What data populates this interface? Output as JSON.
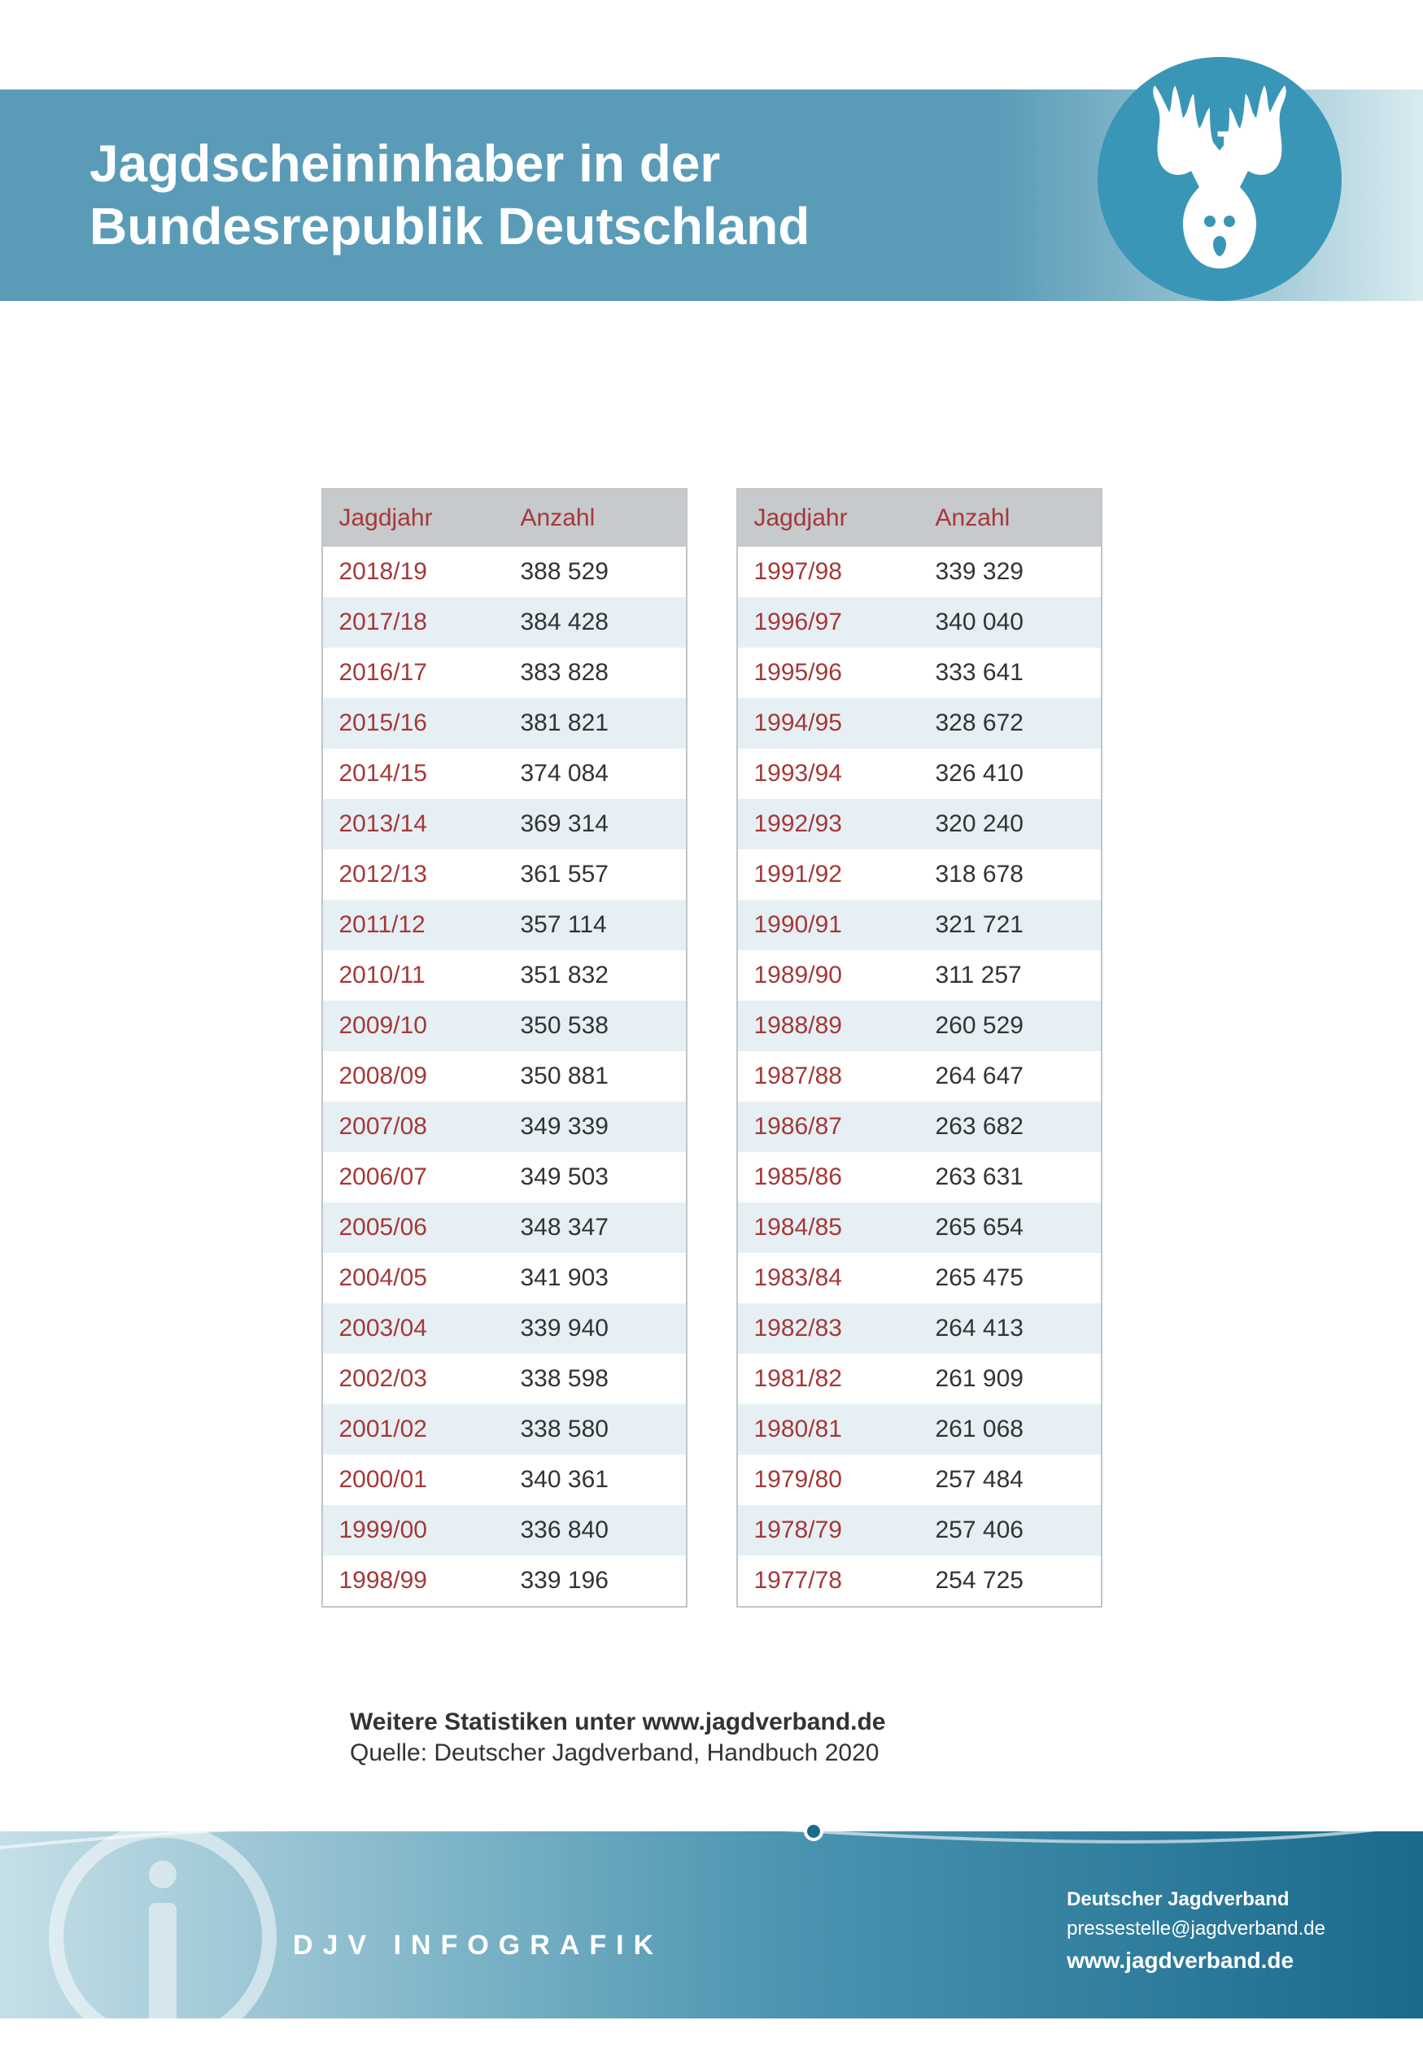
{
  "header": {
    "title_line1": "Jagdscheininhaber in der",
    "title_line2": "Bundesrepublik Deutschland",
    "logo_acronym": "DJV"
  },
  "colors": {
    "header_gradient_start": "#5a9cb8",
    "header_gradient_end": "#d9ecf1",
    "logo_bg": "#3a96b7",
    "year_text": "#a63838",
    "count_text": "#333333",
    "table_header_bg": "#c6cacd",
    "row_even_bg": "#e6f0f4",
    "row_odd_bg": "#ffffff",
    "footer_gradient_start": "#c5dfe7",
    "footer_gradient_end": "#1a6a8c"
  },
  "table": {
    "header_year": "Jagdjahr",
    "header_count": "Anzahl",
    "left_rows": [
      {
        "year": "2018/19",
        "count": "388 529"
      },
      {
        "year": "2017/18",
        "count": "384 428"
      },
      {
        "year": "2016/17",
        "count": "383 828"
      },
      {
        "year": "2015/16",
        "count": "381 821"
      },
      {
        "year": "2014/15",
        "count": "374 084"
      },
      {
        "year": "2013/14",
        "count": "369 314"
      },
      {
        "year": "2012/13",
        "count": "361 557"
      },
      {
        "year": "2011/12",
        "count": "357 114"
      },
      {
        "year": "2010/11",
        "count": "351 832"
      },
      {
        "year": "2009/10",
        "count": "350 538"
      },
      {
        "year": "2008/09",
        "count": "350 881"
      },
      {
        "year": "2007/08",
        "count": "349 339"
      },
      {
        "year": "2006/07",
        "count": "349 503"
      },
      {
        "year": "2005/06",
        "count": "348 347"
      },
      {
        "year": "2004/05",
        "count": "341 903"
      },
      {
        "year": "2003/04",
        "count": "339 940"
      },
      {
        "year": "2002/03",
        "count": "338 598"
      },
      {
        "year": "2001/02",
        "count": "338 580"
      },
      {
        "year": "2000/01",
        "count": "340 361"
      },
      {
        "year": "1999/00",
        "count": "336 840"
      },
      {
        "year": "1998/99",
        "count": "339 196"
      }
    ],
    "right_rows": [
      {
        "year": "1997/98",
        "count": "339 329"
      },
      {
        "year": "1996/97",
        "count": "340 040"
      },
      {
        "year": "1995/96",
        "count": "333 641"
      },
      {
        "year": "1994/95",
        "count": "328 672"
      },
      {
        "year": "1993/94",
        "count": "326 410"
      },
      {
        "year": "1992/93",
        "count": "320 240"
      },
      {
        "year": "1991/92",
        "count": "318 678"
      },
      {
        "year": "1990/91",
        "count": "321 721"
      },
      {
        "year": "1989/90",
        "count": "311 257"
      },
      {
        "year": "1988/89",
        "count": "260 529"
      },
      {
        "year": "1987/88",
        "count": "264 647"
      },
      {
        "year": "1986/87",
        "count": "263 682"
      },
      {
        "year": "1985/86",
        "count": "263 631"
      },
      {
        "year": "1984/85",
        "count": "265 654"
      },
      {
        "year": "1983/84",
        "count": "265 475"
      },
      {
        "year": "1982/83",
        "count": "264 413"
      },
      {
        "year": "1981/82",
        "count": "261 909"
      },
      {
        "year": "1980/81",
        "count": "261 068"
      },
      {
        "year": "1979/80",
        "count": "257 484"
      },
      {
        "year": "1978/79",
        "count": "257 406"
      },
      {
        "year": "1977/78",
        "count": "254 725"
      }
    ]
  },
  "source": {
    "stats_line": "Weitere Statistiken unter www.jagdverband.de",
    "quelle_line": "Quelle: Deutscher Jagdverband, Handbuch 2020"
  },
  "footer": {
    "brand": "DJV INFOGRAFIK",
    "org": "Deutscher Jagdverband",
    "email": "pressestelle@jagdverband.de",
    "url": "www.jagdverband.de"
  }
}
